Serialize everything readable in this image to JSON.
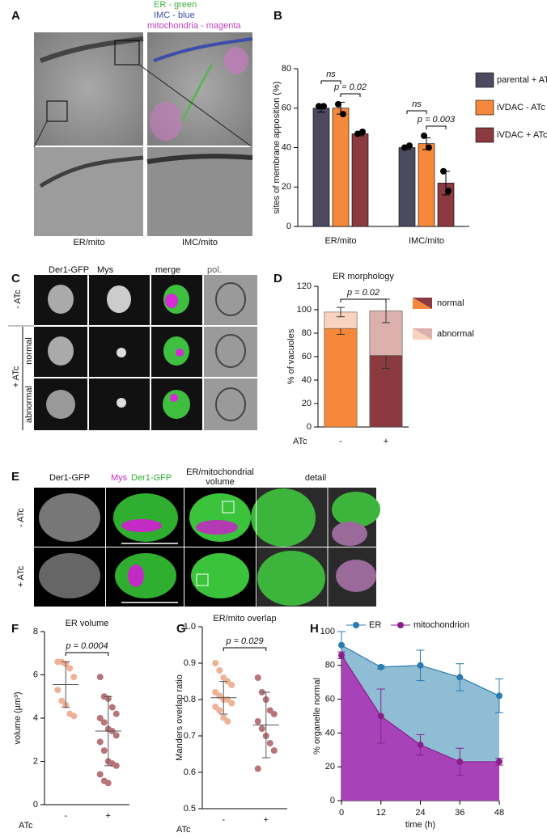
{
  "panel_letters": [
    "A",
    "B",
    "C",
    "D",
    "E",
    "F",
    "G",
    "H"
  ],
  "panel_a": {
    "legend": [
      "ER - green",
      "IMC - blue",
      "mitochondria  - magenta"
    ],
    "labels": [
      "ER/mito",
      "IMC/mito"
    ]
  },
  "panel_c": {
    "columns": [
      "Der1-GFP",
      "Mys",
      "merge",
      "pol."
    ],
    "rows": [
      "- ATc",
      "normal",
      "abnormal",
      "+ ATc"
    ]
  },
  "panel_e": {
    "columns": [
      "Der1-GFP",
      "Mys",
      "Der1-GFP",
      "ER/mitochondrial",
      "volume",
      "detail"
    ],
    "rows": [
      "- ATc",
      "+ ATc"
    ]
  },
  "chart_data": [
    {
      "type": "bar",
      "ylabel": "sites of membrane apposition (%)",
      "categories": [
        "ER/mito",
        "IMC/mito"
      ],
      "series": [
        {
          "name": "parental + ATc",
          "color": "#4b4a5f",
          "values": [
            60,
            40
          ],
          "errors": [
            2,
            1
          ],
          "points": [
            [
              61,
              61
            ],
            [
              40,
              41
            ]
          ]
        },
        {
          "name": "iVDAC - ATc",
          "color": "#f5883a",
          "values": [
            60,
            42
          ],
          "errors": [
            3,
            3
          ],
          "points": [
            [
              62,
              57
            ],
            [
              46,
              40
            ]
          ]
        },
        {
          "name": "iVDAC + ATc",
          "color": "#8b3a3f",
          "values": [
            47,
            22
          ],
          "errors": [
            1,
            6
          ],
          "points": [
            [
              47,
              48
            ],
            [
              28,
              18
            ]
          ]
        }
      ],
      "ylim": [
        0,
        80
      ],
      "yticks": [
        0,
        20,
        40,
        60,
        80
      ],
      "annotations": [
        "ns",
        "p = 0.02",
        "ns",
        "p = 0.003"
      ]
    },
    {
      "type": "stacked-bar",
      "title": "ER morphology",
      "ylabel": "% of vacuoles",
      "xlabel": "ATc",
      "categories": [
        "-",
        "+"
      ],
      "series": [
        {
          "name": "normal",
          "colors": [
            "#f5883a",
            "#8b3a3f"
          ],
          "values": [
            84,
            61
          ],
          "errors": [
            5,
            11
          ]
        },
        {
          "name": "abnormal",
          "colors": [
            "#f8d3bf",
            "#dcb0ad"
          ],
          "values": [
            14,
            38
          ],
          "errors": [
            4,
            10
          ]
        }
      ],
      "ylim": [
        0,
        120
      ],
      "yticks": [
        0,
        20,
        40,
        60,
        80,
        100,
        120
      ],
      "annotations": [
        "p = 0.02"
      ]
    },
    {
      "type": "dot-plot",
      "title": "ER volume",
      "ylabel": "volume (µm³)",
      "xlabel": "ATc",
      "categories": [
        "-",
        "+"
      ],
      "colors": [
        "#f0b296",
        "#b87478"
      ],
      "points": [
        [
          6.6,
          6.6,
          6.5,
          6.3,
          5.9,
          5.3,
          4.8,
          4.6,
          4.2,
          4.1
        ],
        [
          5.9,
          5.0,
          4.9,
          4.5,
          4.2,
          4.0,
          3.8,
          3.5,
          3.4,
          3.2,
          2.9,
          2.5,
          2.0,
          1.9,
          1.8,
          1.4,
          1.1,
          1.0
        ]
      ],
      "means": [
        5.55,
        3.4
      ],
      "sds": [
        1.05,
        1.6
      ],
      "ylim": [
        0,
        8
      ],
      "yticks": [
        0,
        2,
        4,
        6,
        8
      ],
      "annotations": [
        "p = 0.0004"
      ]
    },
    {
      "type": "dot-plot",
      "title": "ER/mito overlap",
      "ylabel": "Manders overlap ratio",
      "xlabel": "ATc",
      "categories": [
        "-",
        "+"
      ],
      "colors": [
        "#f0b296",
        "#b87478"
      ],
      "points": [
        [
          0.9,
          0.88,
          0.86,
          0.85,
          0.84,
          0.82,
          0.81,
          0.8,
          0.8,
          0.79,
          0.78,
          0.77,
          0.75,
          0.74
        ],
        [
          0.86,
          0.82,
          0.8,
          0.77,
          0.76,
          0.74,
          0.72,
          0.7,
          0.68,
          0.66,
          0.61
        ]
      ],
      "means": [
        0.805,
        0.73
      ],
      "sds": [
        0.045,
        0.09
      ],
      "ylim": [
        0.5,
        1
      ],
      "yticks": [
        0.5,
        0.6,
        0.7,
        0.8,
        0.9,
        {
          "value": 1,
          "label": "1.0"
        }
      ],
      "annotations": [
        "p = 0.029"
      ]
    },
    {
      "type": "area-line",
      "xlabel": "time (h)",
      "ylabel": "% organelle normal",
      "x": [
        0,
        12,
        24,
        36,
        48
      ],
      "series": [
        {
          "name": "ER",
          "color": "#2b7bb0",
          "fill": "#8fbdd4",
          "values": [
            92,
            79,
            80,
            73,
            62
          ],
          "errors": [
            8,
            1,
            9,
            8,
            10
          ]
        },
        {
          "name": "mitochondrion",
          "color": "#8a1f8c",
          "fill": "#a842b8",
          "values": [
            86,
            50,
            33,
            23,
            23
          ],
          "errors": [
            2,
            16,
            6,
            8,
            2
          ]
        }
      ],
      "xlim": [
        0,
        48
      ],
      "xticks": [
        0,
        12,
        24,
        36,
        48
      ],
      "ylim": [
        0,
        100
      ],
      "yticks": [
        0,
        20,
        40,
        60,
        80,
        100
      ]
    }
  ]
}
